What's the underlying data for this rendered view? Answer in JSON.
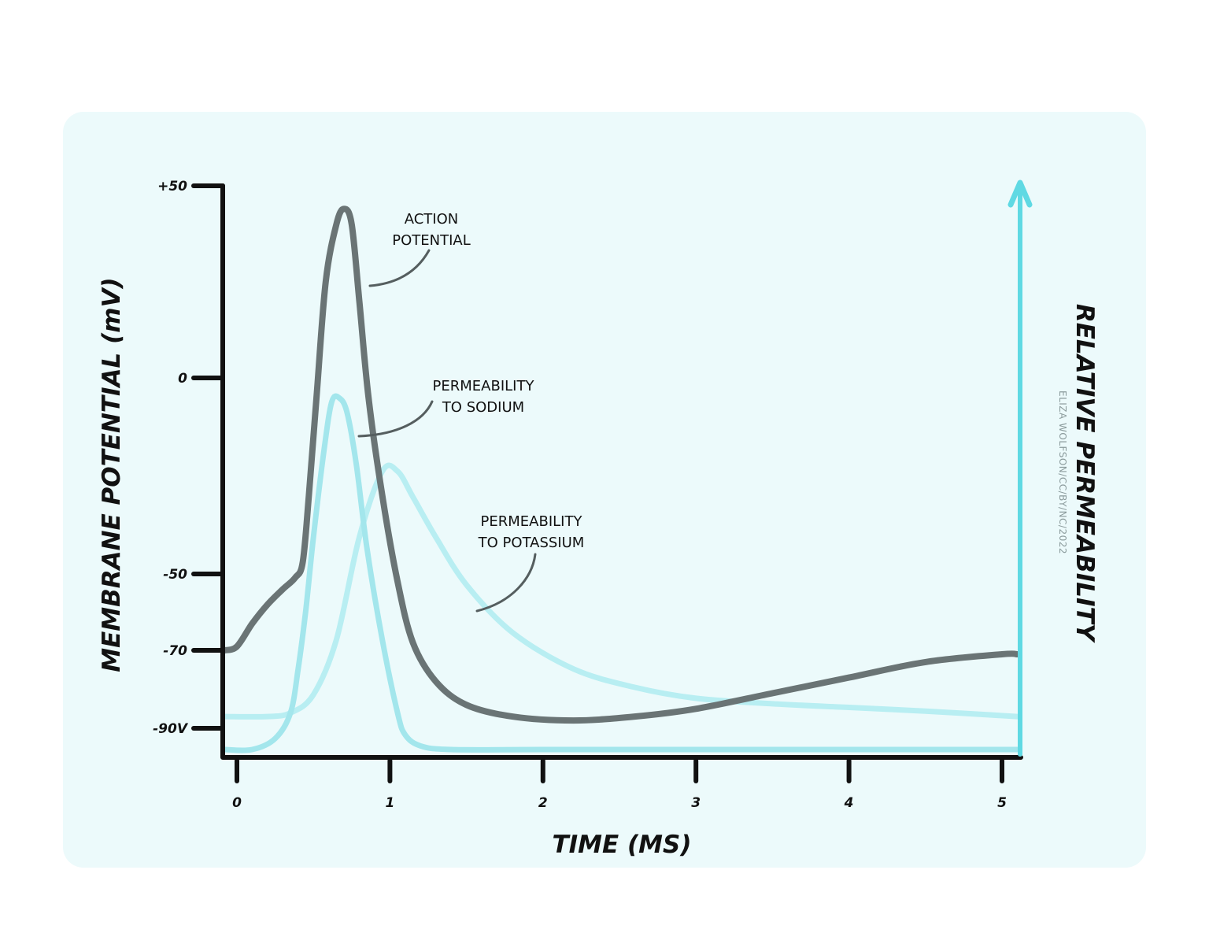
{
  "chart_data": {
    "type": "line",
    "title": "",
    "xlabel": "TIME (MS)",
    "ylabel": "MEMBRANE POTENTIAL (mV)",
    "y2label": "RELATIVE PERMEABILITY",
    "xlim": [
      0,
      5
    ],
    "ylim": [
      -90,
      50
    ],
    "x_ticks": [
      {
        "value": 0,
        "label": "0"
      },
      {
        "value": 1,
        "label": "1"
      },
      {
        "value": 2,
        "label": "2"
      },
      {
        "value": 3,
        "label": "3"
      },
      {
        "value": 4,
        "label": "4"
      },
      {
        "value": 5,
        "label": "5"
      }
    ],
    "y_ticks": [
      {
        "value": 50,
        "label": "+50"
      },
      {
        "value": 0,
        "label": "0"
      },
      {
        "value": -50,
        "label": "-50"
      },
      {
        "value": -70,
        "label": "-70"
      },
      {
        "value": -90,
        "label": "-90V"
      }
    ],
    "grid": false,
    "series": [
      {
        "name": "ACTION POTENTIAL",
        "axis": "left",
        "color": "#6a7475",
        "x": [
          -0.08,
          0.0,
          0.1,
          0.2,
          0.3,
          0.38,
          0.43,
          0.47,
          0.52,
          0.58,
          0.65,
          0.7,
          0.75,
          0.8,
          0.86,
          0.95,
          1.05,
          1.15,
          1.3,
          1.5,
          1.8,
          2.2,
          2.6,
          3.0,
          3.5,
          4.0,
          4.5,
          5.0,
          5.1
        ],
        "y": [
          -70,
          -69,
          -63,
          -58,
          -54,
          -51,
          -47,
          -30,
          -5,
          25,
          40,
          44,
          40,
          20,
          -5,
          -30,
          -52,
          -68,
          -78,
          -84,
          -87,
          -88,
          -87,
          -85,
          -81,
          -77,
          -73,
          -71,
          -71
        ]
      },
      {
        "name": "PERMEABILITY TO SODIUM",
        "axis": "right",
        "color": "#a3e6ec",
        "x": [
          -0.08,
          0.1,
          0.25,
          0.35,
          0.4,
          0.45,
          0.5,
          0.57,
          0.62,
          0.67,
          0.72,
          0.78,
          0.85,
          0.95,
          1.05,
          1.1,
          1.2,
          1.4,
          2.0,
          3.0,
          4.0,
          5.1
        ],
        "y": [
          0.0,
          0.0,
          0.03,
          0.1,
          0.22,
          0.38,
          0.58,
          0.82,
          0.95,
          0.96,
          0.92,
          0.78,
          0.55,
          0.3,
          0.1,
          0.04,
          0.01,
          0.0,
          0.0,
          0.0,
          0.0,
          0.0
        ]
      },
      {
        "name": "PERMEABILITY TO POTASSIUM",
        "axis": "right",
        "color": "#b8eef2",
        "x": [
          -0.08,
          0.2,
          0.35,
          0.5,
          0.65,
          0.8,
          0.95,
          1.05,
          1.15,
          1.3,
          1.5,
          1.8,
          2.2,
          2.6,
          3.0,
          3.5,
          4.0,
          4.5,
          5.1
        ],
        "y": [
          0.09,
          0.09,
          0.1,
          0.15,
          0.3,
          0.58,
          0.76,
          0.76,
          0.69,
          0.58,
          0.45,
          0.32,
          0.22,
          0.17,
          0.14,
          0.125,
          0.115,
          0.105,
          0.09
        ]
      }
    ],
    "annotations": [
      {
        "lines": [
          "ACTION",
          "POTENTIAL"
        ],
        "target_series": 0
      },
      {
        "lines": [
          "PERMEABILITY",
          "TO SODIUM"
        ],
        "target_series": 1
      },
      {
        "lines": [
          "PERMEABILITY",
          "TO POTASSIUM"
        ],
        "target_series": 2
      }
    ],
    "credit": "ELIZA WOLFSON/CC/BY/NC/2022"
  },
  "colors": {
    "background": "#ecfafb",
    "axis": "#111111",
    "right_axis": "#5fd9e3"
  }
}
